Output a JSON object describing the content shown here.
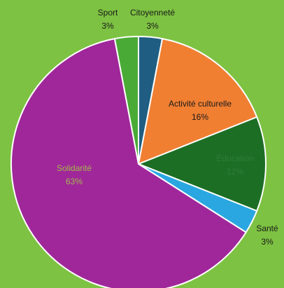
{
  "chart_data": {
    "type": "pie",
    "background_color": "#7dc242",
    "slices": [
      {
        "label": "Citoyenneté",
        "value_label": "3%",
        "value": 3,
        "color": "#1f5e82",
        "label_color": "#1a1a1a"
      },
      {
        "label": "Activité culturelle",
        "value_label": "16%",
        "value": 16,
        "color": "#f07f32",
        "label_color": "#1a1a1a"
      },
      {
        "label": "Éducation",
        "value_label": "12%",
        "value": 12,
        "color": "#1c6e24",
        "label_color": "#2f7d3a"
      },
      {
        "label": "Santé",
        "value_label": "3%",
        "value": 3,
        "color": "#2aa7e0",
        "label_color": "#1a1a1a"
      },
      {
        "label": "Solidarité",
        "value_label": "63%",
        "value": 63,
        "color": "#a0279a",
        "label_color": "#a3b84a"
      },
      {
        "label": "Sport",
        "value_label": "3%",
        "value": 3,
        "color": "#4aaa36",
        "label_color": "#1a1a1a"
      }
    ]
  }
}
